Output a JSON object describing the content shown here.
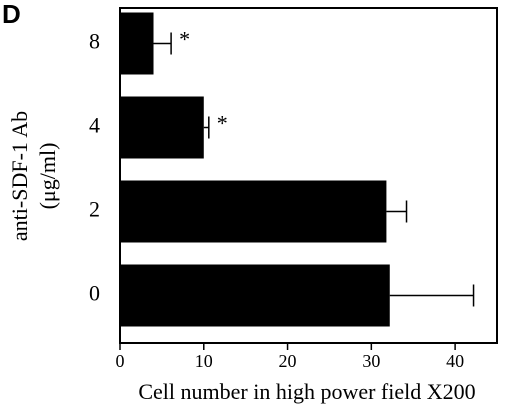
{
  "chart_data": {
    "type": "bar",
    "orientation": "horizontal",
    "panel_label": "D",
    "x_label": "Cell number in high power field X200",
    "y_label": [
      "anti-SDF-1 Ab",
      "(μg/ml)"
    ],
    "categories": [
      "0",
      "2",
      "4",
      "8"
    ],
    "values": [
      32.2,
      31.8,
      10,
      4
    ],
    "errors": [
      10,
      2.4,
      0.6,
      2.1
    ],
    "significance": [
      null,
      null,
      "*",
      "*"
    ],
    "color": "#000000",
    "xlim": [
      0,
      45
    ],
    "xticks": [
      0,
      10,
      20,
      30,
      40
    ]
  }
}
